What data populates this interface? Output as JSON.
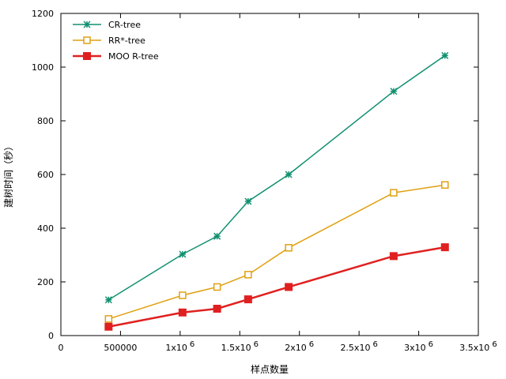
{
  "chart_data": {
    "type": "line",
    "xlabel": "样点数量",
    "ylabel": "建树时间（秒）",
    "xlim": [
      0,
      3500000
    ],
    "ylim": [
      0,
      1200
    ],
    "x_ticks": [
      {
        "value": 0,
        "base": "0",
        "exp": ""
      },
      {
        "value": 500000,
        "base": "500000",
        "exp": ""
      },
      {
        "value": 1000000,
        "base": "1x10",
        "exp": "6"
      },
      {
        "value": 1500000,
        "base": "1.5x10",
        "exp": "6"
      },
      {
        "value": 2000000,
        "base": "2x10",
        "exp": "6"
      },
      {
        "value": 2500000,
        "base": "2.5x10",
        "exp": "6"
      },
      {
        "value": 3000000,
        "base": "3x10",
        "exp": "6"
      },
      {
        "value": 3500000,
        "base": "3.5x10",
        "exp": "6"
      }
    ],
    "y_ticks": [
      0,
      200,
      400,
      600,
      800,
      1000,
      1200
    ],
    "grid": false,
    "legend_position": "top-left",
    "series": [
      {
        "name": "CR-tree",
        "color": "#109070",
        "marker": "star",
        "x": [
          400000,
          1020000,
          1310000,
          1570000,
          1910000,
          2790000,
          3220000
        ],
        "y": [
          133,
          303,
          370,
          500,
          600,
          910,
          1043
        ]
      },
      {
        "name": "RR*-tree",
        "color": "#e0a010",
        "marker": "open-square",
        "x": [
          400000,
          1020000,
          1310000,
          1570000,
          1910000,
          2790000,
          3220000
        ],
        "y": [
          62,
          150,
          181,
          227,
          327,
          532,
          561
        ]
      },
      {
        "name": "MOO R-tree",
        "color": "#e02020",
        "marker": "filled-square",
        "x": [
          400000,
          1020000,
          1310000,
          1570000,
          1910000,
          2790000,
          3220000
        ],
        "y": [
          33,
          86,
          100,
          135,
          181,
          296,
          329
        ]
      }
    ]
  }
}
